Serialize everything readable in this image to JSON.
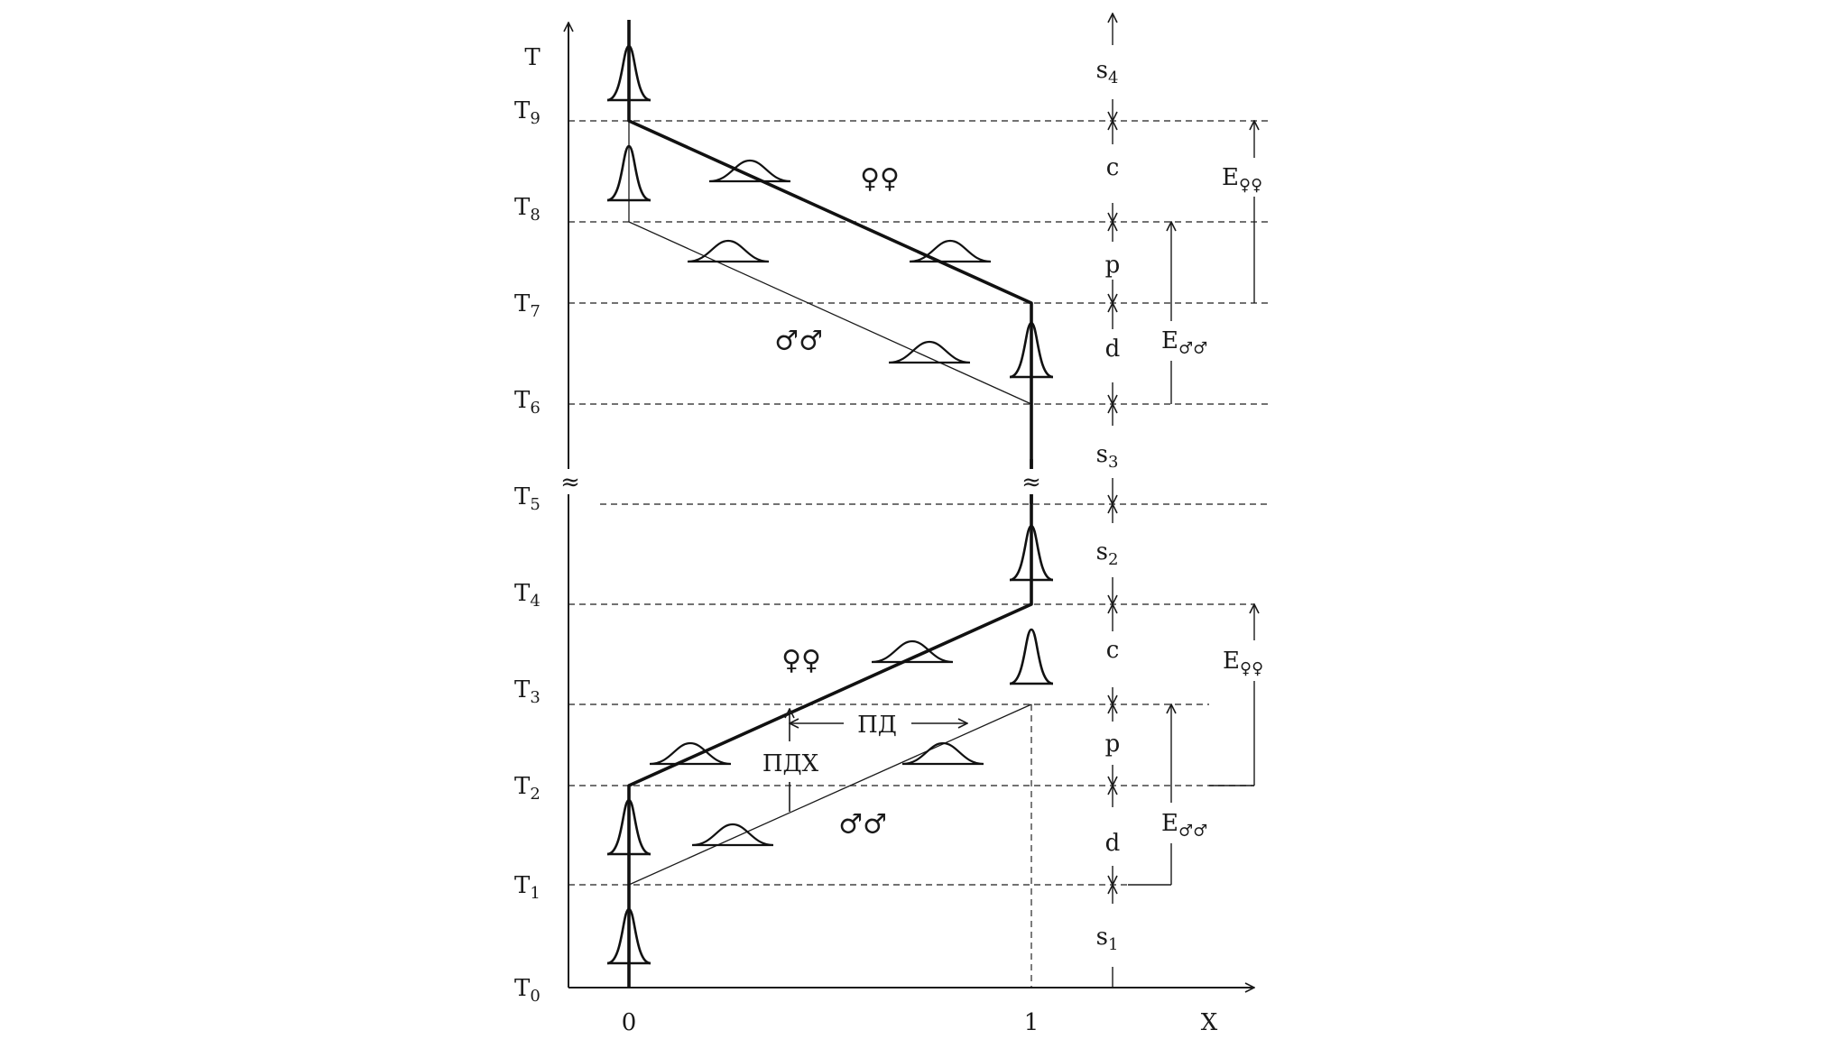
{
  "axes": {
    "y_axis_label": "T",
    "x_axis_label": "X",
    "x_tick_0": "0",
    "x_tick_1": "1",
    "break_symbol": "≈"
  },
  "time_levels": [
    {
      "main": "T",
      "sub": "0"
    },
    {
      "main": "T",
      "sub": "1"
    },
    {
      "main": "T",
      "sub": "2"
    },
    {
      "main": "T",
      "sub": "3"
    },
    {
      "main": "T",
      "sub": "4"
    },
    {
      "main": "T",
      "sub": "5"
    },
    {
      "main": "T",
      "sub": "6"
    },
    {
      "main": "T",
      "sub": "7"
    },
    {
      "main": "T",
      "sub": "8"
    },
    {
      "main": "T",
      "sub": "9"
    }
  ],
  "segments": [
    {
      "main": "s",
      "sub": "1"
    },
    {
      "main": "d",
      "sub": ""
    },
    {
      "main": "p",
      "sub": ""
    },
    {
      "main": "c",
      "sub": ""
    },
    {
      "main": "s",
      "sub": "2"
    },
    {
      "main": "s",
      "sub": "3"
    },
    {
      "main": "d",
      "sub": ""
    },
    {
      "main": "p",
      "sub": ""
    },
    {
      "main": "c",
      "sub": ""
    },
    {
      "main": "s",
      "sub": "4"
    }
  ],
  "bracket_labels": {
    "e_males_lower": {
      "main": "E",
      "sub": "♂♂"
    },
    "e_females_lower": {
      "main": "E",
      "sub": "♀♀"
    },
    "e_males_upper": {
      "main": "E",
      "sub": "♂♂"
    },
    "e_females_upper": {
      "main": "E",
      "sub": "♀♀"
    }
  },
  "symbols": {
    "females_lower": "♀♀",
    "males_lower": "♂♂",
    "females_upper": "♀♀",
    "males_upper": "♂♂"
  },
  "annotations": {
    "pd_label": "ПД",
    "pdx_label": "ПДХ"
  }
}
